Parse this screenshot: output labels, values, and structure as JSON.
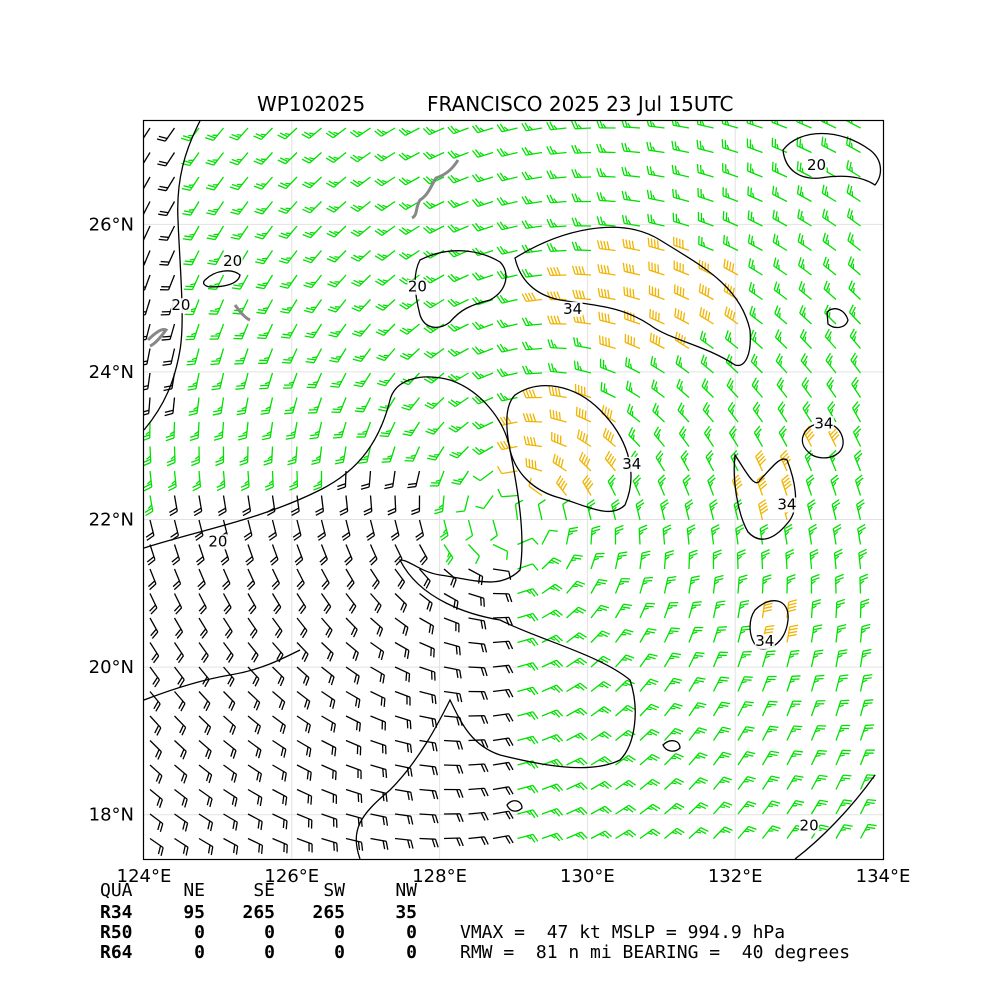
{
  "title": {
    "storm_id": "WP102025",
    "storm_info": "FRANCISCO 2025 23 Jul 15UTC"
  },
  "map": {
    "lon_ticks": [
      "124°E",
      "126°E",
      "128°E",
      "130°E",
      "132°E",
      "134°E"
    ],
    "lat_ticks": [
      "18°N",
      "20°N",
      "22°N",
      "24°N",
      "26°N"
    ],
    "lon_range": [
      124,
      134
    ],
    "lat_range": [
      17.4,
      27.4
    ],
    "storm_center": {
      "lon": 129.0,
      "lat": 22.0
    },
    "colors": {
      "barb_below_20": "#000000",
      "barb_20_34": "#00e000",
      "barb_above_34": "#f0b400",
      "coastline": "#888888",
      "contour": "#000000"
    },
    "contour_labels": [
      {
        "text": "20",
        "lon": 127.7,
        "lat": 25.1
      },
      {
        "text": "20",
        "lon": 125.2,
        "lat": 25.45
      },
      {
        "text": "20",
        "lon": 124.5,
        "lat": 24.85
      },
      {
        "text": "20",
        "lon": 133.1,
        "lat": 26.75
      },
      {
        "text": "20",
        "lon": 125.0,
        "lat": 21.65
      },
      {
        "text": "20",
        "lon": 133.0,
        "lat": 17.8
      },
      {
        "text": "34",
        "lon": 129.8,
        "lat": 24.8
      },
      {
        "text": "34",
        "lon": 130.6,
        "lat": 22.7
      },
      {
        "text": "34",
        "lon": 133.2,
        "lat": 23.25
      },
      {
        "text": "34",
        "lon": 132.7,
        "lat": 22.15
      },
      {
        "text": "34",
        "lon": 132.4,
        "lat": 20.3
      }
    ]
  },
  "wind_radii": {
    "headers": [
      "QUA",
      "NE",
      "SE",
      "SW",
      "NW"
    ],
    "rows": [
      {
        "label": "R34",
        "values": [
          "95",
          "265",
          "265",
          "35"
        ]
      },
      {
        "label": "R50",
        "values": [
          "0",
          "0",
          "0",
          "0"
        ]
      },
      {
        "label": "R64",
        "values": [
          "0",
          "0",
          "0",
          "0"
        ]
      }
    ]
  },
  "summary": {
    "line1": "VMAX =  47 kt MSLP = 994.9 hPa",
    "line2": "RMW =  81 n mi BEARING =  40 degrees"
  }
}
